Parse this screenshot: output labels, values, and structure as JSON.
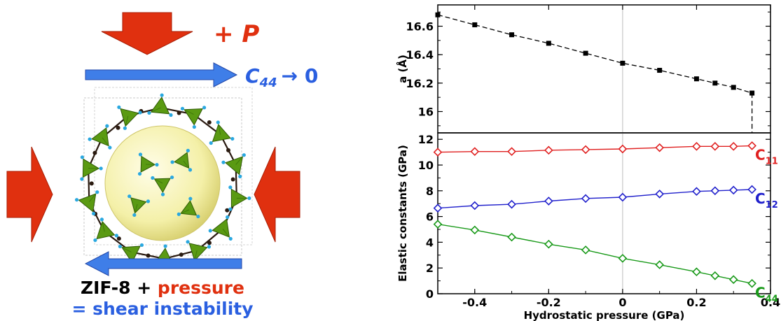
{
  "illustration": {
    "pressure_label": "+ P",
    "shear_label_symbol": "C",
    "shear_label_subscript": "44",
    "shear_label_arrow": "→ 0",
    "caption_line1_part1": "ZIF-8 +",
    "caption_line1_part2": "pressure",
    "caption_line2": "= shear instability",
    "colors": {
      "pressure_arrow": "#e0300f",
      "shear_arrow": "#3f7ee8",
      "tetrahedra": "#5a9a12",
      "sphere": "#f4f0a8",
      "linker": "#2a1a10",
      "nitrogen": "#2aa8e0"
    }
  },
  "chart_data": [
    {
      "type": "line",
      "ylabel": "a (Å)",
      "xlim": [
        -0.5,
        0.4
      ],
      "ylim": [
        15.85,
        16.75
      ],
      "yticks": [
        16,
        16.2,
        16.4,
        16.6
      ],
      "series": [
        {
          "x": [
            -0.5,
            -0.4,
            -0.3,
            -0.2,
            -0.1,
            0,
            0.1,
            0.2,
            0.25,
            0.3,
            0.35
          ],
          "y": [
            16.68,
            16.61,
            16.54,
            16.48,
            16.41,
            16.34,
            16.29,
            16.23,
            16.2,
            16.17,
            16.13
          ],
          "color": "#000000",
          "marker": "square"
        }
      ],
      "vertical_line_at": 0.35
    },
    {
      "type": "line",
      "xlabel": "Hydrostatic pressure (GPa)",
      "ylabel": "Elastic constants (GPa)",
      "xlim": [
        -0.5,
        0.4
      ],
      "ylim": [
        0,
        12.5
      ],
      "xticks": [
        -0.4,
        -0.2,
        0,
        0.2,
        0.4
      ],
      "xtick_labels": [
        "-0.4",
        "-0.2",
        "0",
        "0.2",
        "0.4"
      ],
      "yticks": [
        0,
        2,
        4,
        6,
        8,
        10,
        12
      ],
      "x": [
        -0.5,
        -0.4,
        -0.3,
        -0.2,
        -0.1,
        0,
        0.1,
        0.2,
        0.25,
        0.3,
        0.35
      ],
      "series": [
        {
          "name": "C",
          "subscript": "11",
          "color": "#e02020",
          "marker": "diamond",
          "values": [
            11.0,
            11.05,
            11.05,
            11.15,
            11.2,
            11.25,
            11.35,
            11.45,
            11.45,
            11.45,
            11.5
          ]
        },
        {
          "name": "C",
          "subscript": "12",
          "color": "#2020cc",
          "marker": "diamond",
          "values": [
            6.65,
            6.85,
            6.95,
            7.2,
            7.4,
            7.5,
            7.75,
            7.95,
            8.0,
            8.05,
            8.1
          ]
        },
        {
          "name": "C",
          "subscript": "44",
          "color": "#1a9a1a",
          "marker": "diamond",
          "values": [
            5.4,
            4.95,
            4.4,
            3.85,
            3.4,
            2.75,
            2.25,
            1.7,
            1.4,
            1.1,
            0.8
          ]
        }
      ]
    }
  ]
}
